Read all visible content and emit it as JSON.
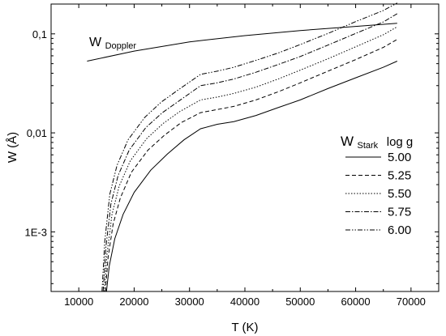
{
  "chart_data": {
    "type": "line",
    "xlabel": "T (K)",
    "ylabel": "W (Å)",
    "xlim": [
      5000,
      75000
    ],
    "ylim": [
      0.00025,
      0.2
    ],
    "y_scale": "log",
    "x_ticks": [
      10000,
      20000,
      30000,
      40000,
      50000,
      60000,
      70000
    ],
    "x_tick_labels": [
      "10000",
      "20000",
      "30000",
      "40000",
      "50000",
      "60000",
      "70000"
    ],
    "y_ticks": [
      0.001,
      0.01,
      0.1
    ],
    "y_tick_labels": [
      "1E-3",
      "0,01",
      "0,1"
    ],
    "annotation": {
      "main": "W",
      "sub": "Doppler"
    },
    "legend": {
      "position": "right",
      "title_main": "W",
      "title_sub": "Stark",
      "title_param": "log g",
      "entries": [
        "5.00",
        "5.25",
        "5.50",
        "5.75",
        "6.00"
      ]
    },
    "doppler": {
      "x": [
        11500,
        20000,
        30000,
        40000,
        50000,
        60000,
        67500
      ],
      "y": [
        0.053,
        0.067,
        0.083,
        0.096,
        0.108,
        0.119,
        0.128
      ]
    },
    "series": [
      {
        "name": "5.00",
        "dash": "solid",
        "x": [
          15000,
          15500,
          16500,
          18000,
          20000,
          23000,
          26000,
          29000,
          32000,
          35000,
          38000,
          42000,
          46000,
          50000,
          55000,
          60000,
          65000,
          67500
        ],
        "y": [
          0.00025,
          0.00045,
          0.00085,
          0.0015,
          0.0025,
          0.0042,
          0.0061,
          0.0085,
          0.011,
          0.0122,
          0.013,
          0.015,
          0.018,
          0.0215,
          0.028,
          0.036,
          0.046,
          0.053
        ]
      },
      {
        "name": "5.25",
        "dash": "dash",
        "x": [
          14800,
          15300,
          16200,
          17500,
          19500,
          22500,
          25500,
          28500,
          32000,
          35000,
          38000,
          42000,
          46000,
          50000,
          55000,
          60000,
          65000,
          67500
        ],
        "y": [
          0.00025,
          0.00055,
          0.0012,
          0.0022,
          0.004,
          0.0067,
          0.0095,
          0.0127,
          0.016,
          0.0172,
          0.0185,
          0.0215,
          0.026,
          0.032,
          0.042,
          0.055,
          0.073,
          0.088
        ]
      },
      {
        "name": "5.50",
        "dash": "dot",
        "x": [
          14600,
          15100,
          16000,
          17300,
          19300,
          22300,
          25300,
          28300,
          32000,
          35000,
          38000,
          42000,
          46000,
          50000,
          55000,
          60000,
          65000,
          67500
        ],
        "y": [
          0.00025,
          0.0006,
          0.0015,
          0.0029,
          0.0052,
          0.0088,
          0.0125,
          0.0165,
          0.0215,
          0.023,
          0.025,
          0.029,
          0.035,
          0.043,
          0.056,
          0.074,
          0.098,
          0.118
        ]
      },
      {
        "name": "5.75",
        "dash": "dashdot",
        "x": [
          14400,
          14900,
          15800,
          17100,
          19100,
          22100,
          25100,
          28100,
          32000,
          35000,
          38000,
          42000,
          46000,
          50000,
          55000,
          60000,
          65000,
          67500
        ],
        "y": [
          0.00025,
          0.0007,
          0.0019,
          0.0037,
          0.0067,
          0.0113,
          0.016,
          0.021,
          0.03,
          0.032,
          0.035,
          0.041,
          0.049,
          0.059,
          0.077,
          0.101,
          0.132,
          0.16
        ]
      },
      {
        "name": "6.00",
        "dash": "dashdotdot",
        "x": [
          14200,
          14700,
          15600,
          16900,
          18900,
          21900,
          24900,
          27900,
          32000,
          35000,
          38000,
          42000,
          46000,
          50000,
          55000,
          60000,
          65000,
          67500
        ],
        "y": [
          0.00025,
          0.0008,
          0.0024,
          0.0047,
          0.0085,
          0.0143,
          0.0205,
          0.027,
          0.039,
          0.042,
          0.046,
          0.054,
          0.064,
          0.078,
          0.101,
          0.133,
          0.172,
          0.205
        ]
      }
    ]
  }
}
